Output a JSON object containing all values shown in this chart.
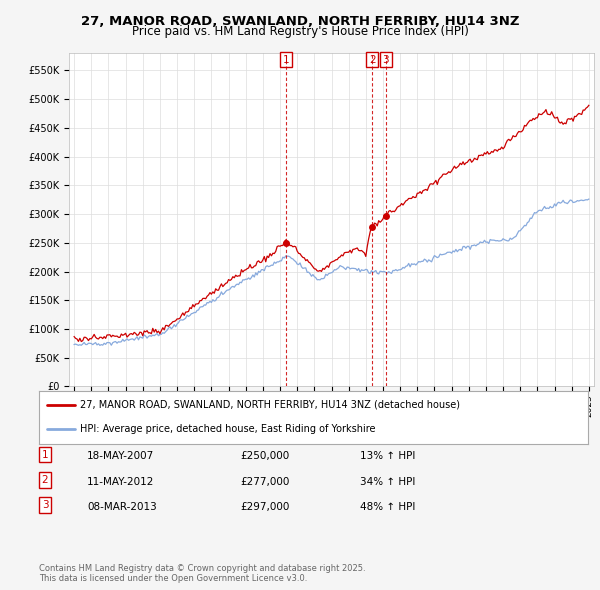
{
  "title": "27, MANOR ROAD, SWANLAND, NORTH FERRIBY, HU14 3NZ",
  "subtitle": "Price paid vs. HM Land Registry's House Price Index (HPI)",
  "ylim": [
    0,
    580000
  ],
  "yticks": [
    0,
    50000,
    100000,
    150000,
    200000,
    250000,
    300000,
    350000,
    400000,
    450000,
    500000,
    550000
  ],
  "house_color": "#cc0000",
  "hpi_color": "#88aadd",
  "background_color": "#f5f5f5",
  "plot_bg_color": "#ffffff",
  "grid_color": "#dddddd",
  "sale_year_floats": [
    2007.37,
    2012.37,
    2013.17
  ],
  "sale_prices": [
    250000,
    277000,
    297000
  ],
  "sale_labels": [
    "1",
    "2",
    "3"
  ],
  "legend_house": "27, MANOR ROAD, SWANLAND, NORTH FERRIBY, HU14 3NZ (detached house)",
  "legend_hpi": "HPI: Average price, detached house, East Riding of Yorkshire",
  "table_rows": [
    [
      "1",
      "18-MAY-2007",
      "£250,000",
      "13% ↑ HPI"
    ],
    [
      "2",
      "11-MAY-2012",
      "£277,000",
      "34% ↑ HPI"
    ],
    [
      "3",
      "08-MAR-2013",
      "£297,000",
      "48% ↑ HPI"
    ]
  ],
  "footnote": "Contains HM Land Registry data © Crown copyright and database right 2025.\nThis data is licensed under the Open Government Licence v3.0.",
  "start_year": 1995,
  "end_year": 2025
}
